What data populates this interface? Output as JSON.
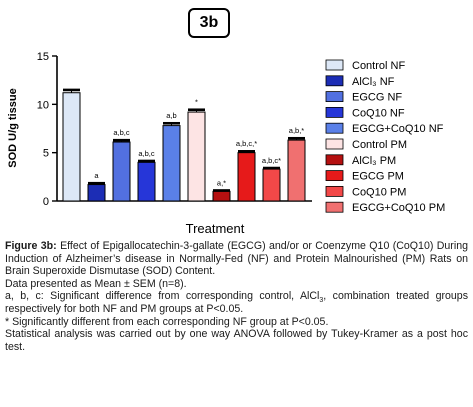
{
  "badge": "3b",
  "chart_data": {
    "type": "bar",
    "ylabel": "SOD U/g tissue",
    "xlabel": "Treatment",
    "ylim": [
      0,
      15
    ],
    "yticks": [
      0,
      5,
      10,
      15
    ],
    "legend_position": "right",
    "categories": [
      "Control NF",
      "AlCl₃ NF",
      "EGCG NF",
      "CoQ10 NF",
      "EGCG+CoQ10 NF",
      "Control PM",
      "AlCl₃ PM",
      "EGCG PM",
      "CoQ10 PM",
      "EGCG+CoQ10 PM"
    ],
    "values": [
      11.2,
      1.7,
      6.1,
      4.0,
      7.8,
      9.2,
      1.0,
      5.0,
      3.3,
      6.3
    ],
    "errors": [
      0.3,
      0.15,
      0.2,
      0.15,
      0.25,
      0.25,
      0.1,
      0.15,
      0.12,
      0.2
    ],
    "annotations": [
      "",
      "a",
      "a,b,c",
      "a,b,c",
      "a,b",
      "*",
      "a,*",
      "a,b,c,*",
      "a,b,c*",
      "a,b,*"
    ],
    "colors": [
      "#dde8f7",
      "#1c2db5",
      "#5270e0",
      "#2636d8",
      "#5a80e8",
      "#fde4e4",
      "#b51010",
      "#e61a1a",
      "#f24848",
      "#f07070"
    ]
  },
  "caption": {
    "figure_label": "Figure 3b:",
    "figure_text": " Effect of Epigallocatechin-3-gallate (EGCG) and/or or Coenzyme Q10 (CoQ10) During Induction of Alzheimer’s disease in Normally-Fed (NF) and Protein Malnourished (PM) Rats on Brain Superoxide Dismutase (SOD) Content.",
    "line2": "Data presented as Mean ± SEM (n=8).",
    "line3_a": "a, b, c: Significant difference from corresponding control, AlCl",
    "line3_sub": "3",
    "line3_b": ", combination treated groups respectively for both NF and PM groups at P<0.05.",
    "line4": "* Significantly different from each corresponding NF group at P<0.05.",
    "line5": "Statistical analysis was carried out by one way ANOVA followed by Tukey-Kramer as a post hoc test."
  }
}
